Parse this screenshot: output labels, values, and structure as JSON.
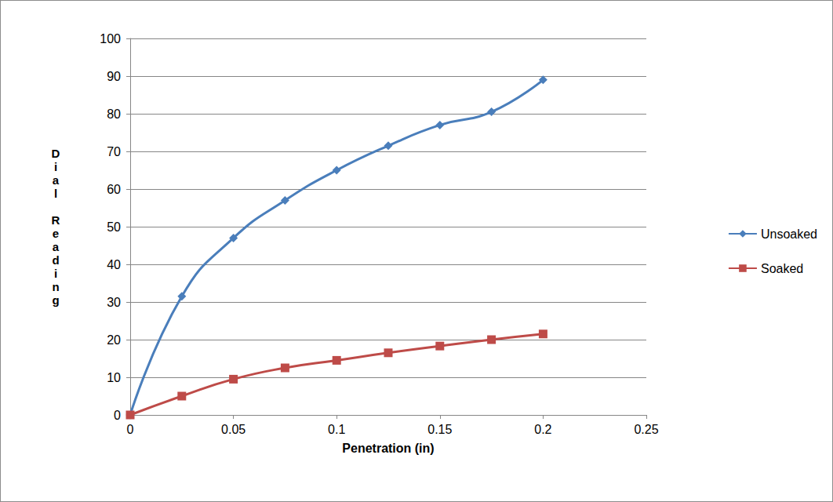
{
  "chart_data": {
    "type": "line",
    "x_label": "Penetration (in)",
    "y_label": "Dial Reading",
    "x": [
      0,
      0.025,
      0.05,
      0.075,
      0.1,
      0.125,
      0.15,
      0.175,
      0.2
    ],
    "series": [
      {
        "name": "Unsoaked",
        "color": "#4a7ebb",
        "marker": "diamond",
        "line_style": "solid",
        "values": [
          0,
          31.5,
          47,
          57,
          65,
          71.5,
          77,
          80.5,
          89
        ]
      },
      {
        "name": "Soaked",
        "color": "#be4b48",
        "marker": "square",
        "line_style": "solid",
        "values": [
          0,
          5,
          9.5,
          12.5,
          14.5,
          16.5,
          18.3,
          20,
          21.5
        ]
      }
    ],
    "xlim": [
      0,
      0.25
    ],
    "xticks": [
      0,
      0.05,
      0.1,
      0.15,
      0.2,
      0.25
    ],
    "ylim": [
      0,
      100
    ],
    "yticks": [
      0,
      10,
      20,
      30,
      40,
      50,
      60,
      70,
      80,
      90,
      100
    ],
    "grid": true,
    "legend": "right"
  }
}
